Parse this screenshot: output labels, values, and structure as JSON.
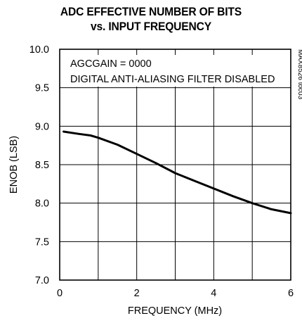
{
  "chart_data": {
    "type": "line",
    "title_lines": [
      "ADC EFFECTIVE NUMBER OF BITS",
      "vs. INPUT FREQUENCY"
    ],
    "xlabel": "FREQUENCY (MHz)",
    "ylabel": "ENOB (LSB)",
    "xlim": [
      0,
      6
    ],
    "ylim": [
      7.0,
      10.0
    ],
    "x_ticks": [
      0,
      2,
      4,
      6
    ],
    "y_ticks": [
      "7.0",
      "7.5",
      "8.0",
      "8.5",
      "9.0",
      "9.5",
      "10.0"
    ],
    "grid": true,
    "annotations": [
      "AGCGAIN = 0000",
      "DIGITAL ANTI-ALIASING FILTER DISABLED"
    ],
    "side_label": "MAX8526 toc03",
    "series": [
      {
        "x": [
          0.1,
          0.5,
          0.8,
          1.0,
          1.5,
          2.0,
          2.5,
          3.0,
          3.5,
          4.0,
          4.5,
          5.0,
          5.5,
          6.0
        ],
        "values": [
          8.93,
          8.9,
          8.88,
          8.85,
          8.76,
          8.64,
          8.52,
          8.39,
          8.29,
          8.19,
          8.09,
          8.0,
          7.92,
          7.87
        ]
      }
    ]
  }
}
